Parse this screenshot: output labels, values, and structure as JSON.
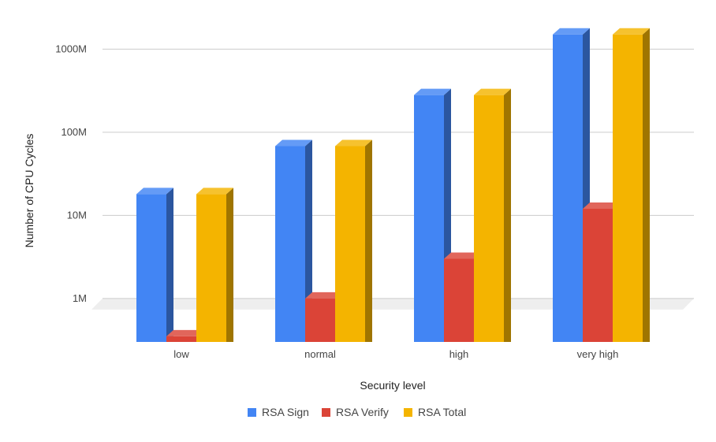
{
  "chart_data": {
    "type": "bar",
    "title": "",
    "xlabel": "Security level",
    "ylabel": "Number of CPU Cycles",
    "y_scale": "log",
    "ylim": [
      300000,
      1500000000
    ],
    "yticks": [
      {
        "value": 1000000,
        "label": "1M"
      },
      {
        "value": 10000000,
        "label": "10M"
      },
      {
        "value": 100000000,
        "label": "100M"
      },
      {
        "value": 1000000000,
        "label": "1000M"
      }
    ],
    "categories": [
      "low",
      "normal",
      "high",
      "very high"
    ],
    "series": [
      {
        "name": "RSA Sign",
        "color": "#4285F4",
        "values": [
          18000000,
          68000000,
          280000000,
          1500000000
        ]
      },
      {
        "name": "RSA Verify",
        "color": "#DB4437",
        "values": [
          350000,
          1000000,
          3000000,
          12000000
        ]
      },
      {
        "name": "RSA Total",
        "color": "#F4B400",
        "values": [
          18000000,
          68000000,
          280000000,
          1500000000
        ]
      }
    ],
    "grid": true,
    "legend_position": "bottom",
    "style": "3d"
  }
}
